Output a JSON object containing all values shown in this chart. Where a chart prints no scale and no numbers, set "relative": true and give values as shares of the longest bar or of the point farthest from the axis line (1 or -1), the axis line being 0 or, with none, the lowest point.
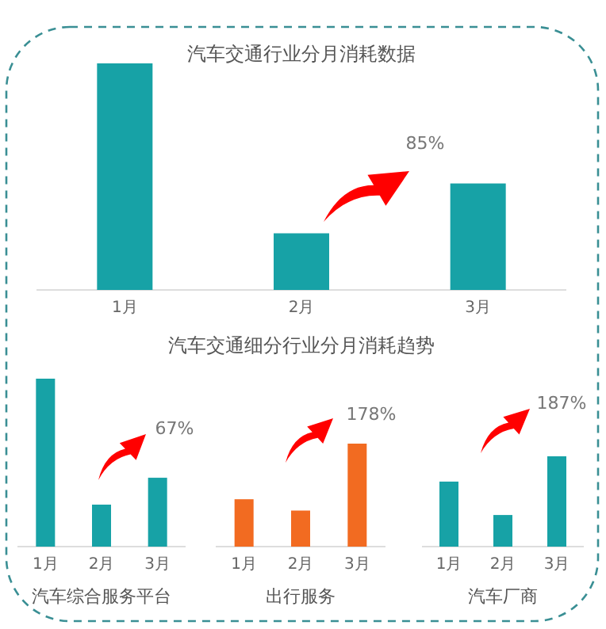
{
  "chart_data": [
    {
      "type": "bar",
      "title": "汽车交通行业分月消耗数据",
      "categories": [
        "1月",
        "2月",
        "3月"
      ],
      "values": [
        1,
        0.25,
        0.47
      ],
      "relative": true,
      "color": "#17a2a6",
      "annotations": [
        "85%"
      ]
    },
    {
      "type": "bar",
      "xlabel": "汽车综合服务平台",
      "categories": [
        "1月",
        "2月",
        "3月"
      ],
      "values": [
        1,
        0.25,
        0.41
      ],
      "relative": true,
      "color": "#17a2a6",
      "annotations": [
        "67%"
      ]
    },
    {
      "type": "bar",
      "title": "汽车交通细分行业分月消耗趋势",
      "xlabel": "出行服务",
      "categories": [
        "1月",
        "2月",
        "3月"
      ],
      "values": [
        0.46,
        0.35,
        1
      ],
      "relative": true,
      "color": "#f26b21",
      "annotations": [
        "178%"
      ]
    },
    {
      "type": "bar",
      "xlabel": "汽车厂商",
      "categories": [
        "1月",
        "2月",
        "3月"
      ],
      "values": [
        0.72,
        0.35,
        1
      ],
      "relative": true,
      "color": "#17a2a6",
      "annotations": [
        "187%"
      ]
    }
  ]
}
